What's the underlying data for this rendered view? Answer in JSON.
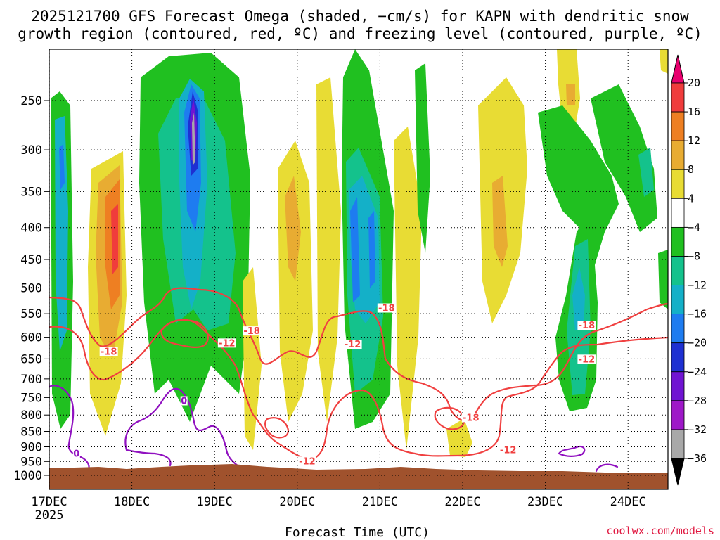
{
  "chart_data": {
    "type": "heatmap",
    "title_line1": "2025121700 GFS Forecast Omega (shaded, −cm/s) for KAPN with dendritic snow",
    "title_line2": "growth region (contoured, red, ºC) and freezing level (contoured, purple, ºC)",
    "xlabel": "Forecast Time (UTC)",
    "ylabel": "",
    "credit": "coolwx.com/models",
    "x_ticks": [
      "17DEC",
      "18DEC",
      "19DEC",
      "20DEC",
      "21DEC",
      "22DEC",
      "23DEC",
      "24DEC"
    ],
    "x_year": "2025",
    "x_range_days": [
      0,
      7.5
    ],
    "y_ticks": [
      250,
      300,
      350,
      400,
      450,
      500,
      550,
      600,
      650,
      700,
      750,
      800,
      850,
      900,
      950,
      1000
    ],
    "y_range_hpa": [
      200,
      1020
    ],
    "colorbar": {
      "labels": [
        "20",
        "16",
        "12",
        "8",
        "4",
        "−4",
        "−8",
        "−12",
        "−16",
        "−20",
        "−24",
        "−28",
        "−32",
        "−36"
      ],
      "colors": [
        "#e8006e",
        "#f03c3c",
        "#ee7f22",
        "#e8ac32",
        "#e8dc34",
        "#ffffff",
        "#20c020",
        "#14c28c",
        "#14b0c8",
        "#1e7cf0",
        "#1e30d2",
        "#7014d2",
        "#9e18c8",
        "#a8a8a8",
        "#000000"
      ]
    },
    "series": [
      {
        "name": "omega",
        "type": "shaded",
        "units": "-cm/s"
      },
      {
        "name": "dendritic snow growth region",
        "type": "contour",
        "color": "#f04040",
        "levels": [
          -12,
          -18
        ]
      },
      {
        "name": "freezing level",
        "type": "contour",
        "color": "#9010c0",
        "levels": [
          0
        ]
      },
      {
        "name": "terrain",
        "type": "fill",
        "color": "#a0522d"
      }
    ],
    "contour_labels": [
      {
        "text": "-18",
        "series": "dendritic snow growth region",
        "day": 0.72,
        "p": 637
      },
      {
        "text": "-18",
        "series": "dendritic snow growth region",
        "day": 2.45,
        "p": 590
      },
      {
        "text": "-12",
        "series": "dendritic snow growth region",
        "day": 2.15,
        "p": 617
      },
      {
        "text": "-12",
        "series": "dendritic snow growth region",
        "day": 3.12,
        "p": 955
      },
      {
        "text": "-18",
        "series": "dendritic snow growth region",
        "day": 4.08,
        "p": 542
      },
      {
        "text": "-12",
        "series": "dendritic snow growth region",
        "day": 3.67,
        "p": 620
      },
      {
        "text": "-18",
        "series": "dendritic snow growth region",
        "day": 5.1,
        "p": 813
      },
      {
        "text": "-12",
        "series": "dendritic snow growth region",
        "day": 5.55,
        "p": 917
      },
      {
        "text": "-18",
        "series": "dendritic snow growth region",
        "day": 6.5,
        "p": 578
      },
      {
        "text": "-12",
        "series": "dendritic snow growth region",
        "day": 6.5,
        "p": 655
      },
      {
        "text": "0",
        "series": "freezing level",
        "day": 0.33,
        "p": 928
      },
      {
        "text": "0",
        "series": "freezing level",
        "day": 1.63,
        "p": 764
      }
    ]
  }
}
